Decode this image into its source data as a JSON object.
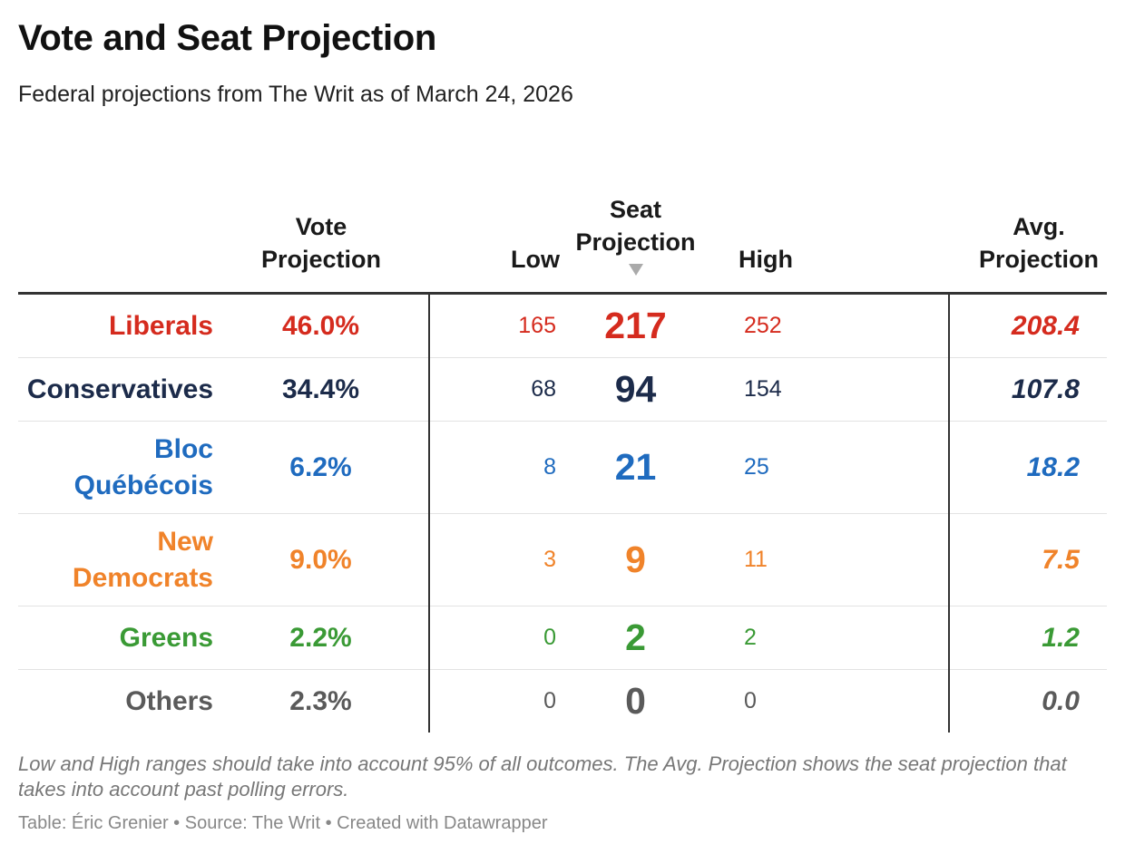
{
  "title": "Vote and Seat Projection",
  "subtitle": "Federal projections from The Writ as of March 24, 2026",
  "columns": {
    "party": "",
    "vote": "Vote Projection",
    "low": "Low",
    "seat": "Seat Projection",
    "high": "High",
    "avg": "Avg. Projection",
    "sort_indicator": "sort-descending-icon"
  },
  "rows": [
    {
      "party": "Liberals",
      "vote": "46.0%",
      "low": "165",
      "seat": "217",
      "high": "252",
      "avg": "208.4",
      "color": "#d52b1e"
    },
    {
      "party": "Conservatives",
      "vote": "34.4%",
      "low": "68",
      "seat": "94",
      "high": "154",
      "avg": "107.8",
      "color": "#1c2b4a"
    },
    {
      "party": "Bloc Québécois",
      "vote": "6.2%",
      "low": "8",
      "seat": "21",
      "high": "25",
      "avg": "18.2",
      "color": "#1f6bbf"
    },
    {
      "party": "New Democrats",
      "vote": "9.0%",
      "low": "3",
      "seat": "9",
      "high": "11",
      "avg": "7.5",
      "color": "#f0832a"
    },
    {
      "party": "Greens",
      "vote": "2.2%",
      "low": "0",
      "seat": "2",
      "high": "2",
      "avg": "1.2",
      "color": "#3a9a35"
    },
    {
      "party": "Others",
      "vote": "2.3%",
      "low": "0",
      "seat": "0",
      "high": "0",
      "avg": "0.0",
      "color": "#5a5a5a"
    }
  ],
  "note": "Low and High ranges should take into account 95% of all outcomes. The Avg. Projection shows the seat projection that takes into account past polling errors.",
  "credit": "Table: Éric Grenier • Source: The Writ • Created with Datawrapper"
}
